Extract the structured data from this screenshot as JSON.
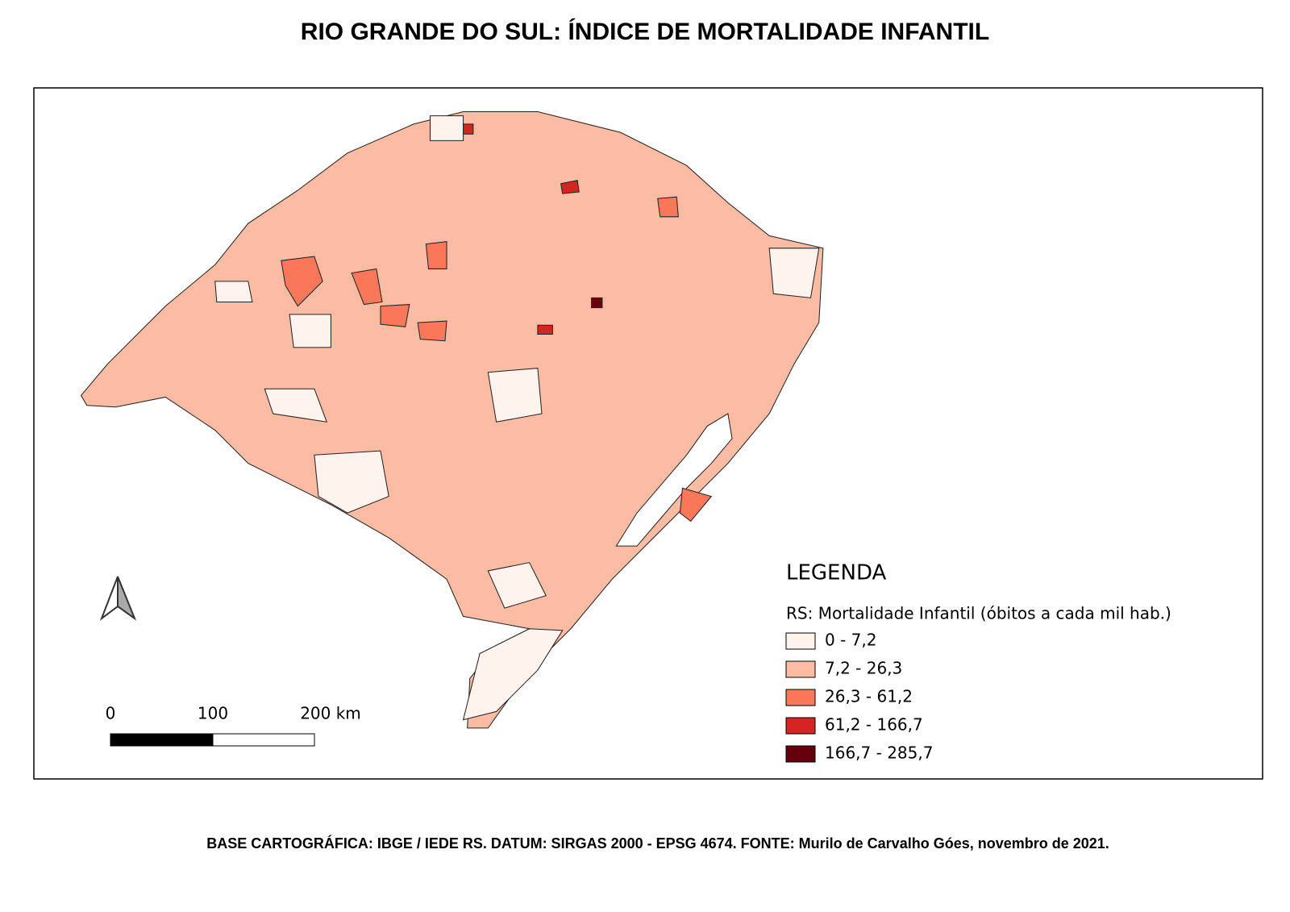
{
  "title": "RIO GRANDE DO SUL: ÍNDICE DE MORTALIDADE INFANTIL",
  "legend": {
    "title": "LEGENDA",
    "subtitle": "RS: Mortalidade Infantil (óbitos a cada mil hab.)",
    "items": [
      {
        "label": "0 - 7,2",
        "color": "#fff3ee"
      },
      {
        "label": "7,2 - 26,3",
        "color": "#fbbca3"
      },
      {
        "label": "26,3 - 61,2",
        "color": "#f9785a"
      },
      {
        "label": "61,2 - 166,7",
        "color": "#d42522"
      },
      {
        "label": "166,7 - 285,7",
        "color": "#67000d"
      }
    ]
  },
  "scale_bar": {
    "labels": [
      "0",
      "100",
      "200 km"
    ]
  },
  "footer": "BASE CARTOGRÁFICA: IBGE / IEDE RS. DATUM: SIRGAS 2000 - EPSG 4674. FONTE: Murilo de Carvalho Góes, novembro de 2021."
}
